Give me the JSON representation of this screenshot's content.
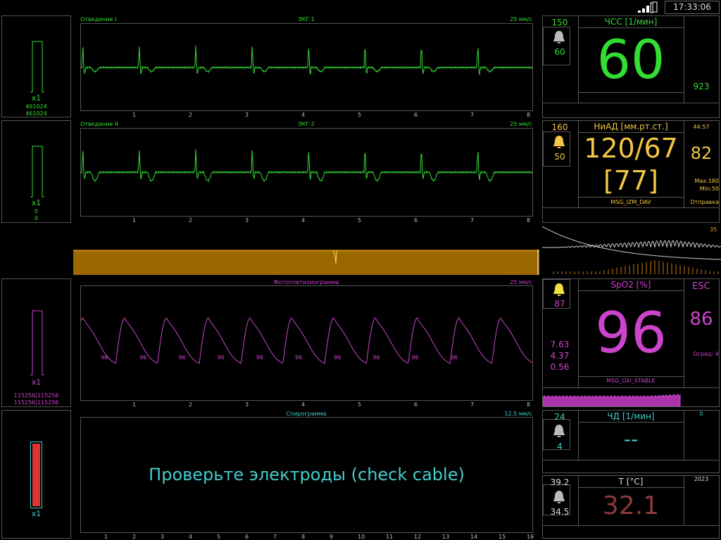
{
  "colors": {
    "ecg": "#33dd33",
    "spo2": "#cc44cc",
    "nibp": "#f2c744",
    "resp": "#44cccc",
    "temp": "#8b3a3a",
    "bar_orange": "#9b6700",
    "spiro_bar": "#dd3333",
    "pleth_small": "#aa33aa"
  },
  "status_bar": {
    "time": "17:33:06",
    "signal_icon": "signal-bars-icon",
    "battery_icon": "battery-icon"
  },
  "ecg1": {
    "lead": "Отведение I",
    "title": "ЭКГ 1",
    "speed": "25 мм/с",
    "gain": "x1",
    "val1": "461024",
    "val2": "461024",
    "ticks": [
      "1",
      "2",
      "3",
      "4",
      "5",
      "6",
      "7",
      "8"
    ]
  },
  "ecg2": {
    "lead": "Отведение II",
    "title": "ЭКГ 2",
    "speed": "25 мм/с",
    "gain": "x1",
    "val1": "0",
    "val2": "0",
    "ticks": [
      "1",
      "2",
      "3",
      "4",
      "5",
      "6",
      "7",
      "8"
    ]
  },
  "pleth": {
    "title": "Фотоплетизмограмма",
    "speed": "25 мм/с",
    "gain": "x1",
    "val1": "115256|115256",
    "val2": "115256|115256",
    "pulse_labels": [
      "96",
      "96",
      "96",
      "96",
      "96",
      "96",
      "96",
      "96",
      "96",
      "96"
    ],
    "ticks": [
      "1",
      "2",
      "3",
      "4",
      "5",
      "6",
      "7",
      "8"
    ]
  },
  "spiro": {
    "title": "Спирограмма",
    "speed": "12.5 мм/с",
    "gain": "x1",
    "message": "Проверьте электроды (check cable)",
    "ticks": [
      "1",
      "2",
      "3",
      "4",
      "5",
      "6",
      "7",
      "8",
      "9",
      "10",
      "11",
      "12",
      "13",
      "14",
      "15",
      "16"
    ]
  },
  "hr": {
    "label": "ЧСС [1/мин]",
    "value": "60",
    "alarm_high": "150",
    "alarm_low": "60",
    "side_value": "923",
    "bell_icon": "bell-icon"
  },
  "nibp": {
    "label": "НиАД [мм.рт.ст.]",
    "value": "120/67",
    "mean": "[77]",
    "alarm_high": "160",
    "alarm_low": "50",
    "time": "44:57",
    "pulse": "82",
    "max": "Max:180",
    "min": "Min:50",
    "status": "Отправка",
    "msg": "MSG_IZM_DAV",
    "bell_icon": "bell-icon"
  },
  "trend": {
    "label": "35"
  },
  "spo2": {
    "label": "SpO2 [%]",
    "value": "96",
    "alarm_low": "87",
    "side1": "7.63",
    "side2": "4.37",
    "side3": "0.56",
    "esc": "ESC",
    "pulse": "86",
    "avg": "Осред: 4",
    "msg": "MSG_OXI_STABLE",
    "bell_icon": "bell-icon"
  },
  "resp": {
    "label": "ЧД [1/мин]",
    "value": "--",
    "alarm_high": "24",
    "alarm_low": "4",
    "side_value": "0",
    "bell_icon": "bell-icon"
  },
  "temp": {
    "label": "T [°C]",
    "value": "32.1",
    "alarm_high": "39.2",
    "alarm_low": "34.5",
    "side_value": "2023",
    "bell_icon": "bell-icon"
  }
}
